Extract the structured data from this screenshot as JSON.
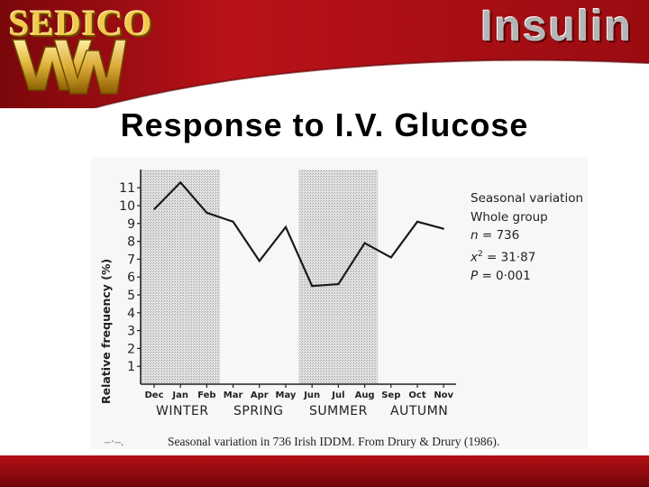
{
  "header": {
    "logo_text": "SEDICO",
    "brand_text": "Insulin",
    "colors": {
      "banner": "#a30d12",
      "banner_dark": "#6e0508",
      "logo_gold": "#e0b33a"
    }
  },
  "slide": {
    "title": "Response to I.V. Glucose",
    "caption_lead": "–·–.",
    "caption": "Seasonal variation in 736 Irish IDDM. From Drury & Drury (1986)."
  },
  "legend": {
    "line1": "Seasonal variation",
    "line2": "Whole group",
    "n_label": "n",
    "n_value": "= 736",
    "chi_label": "x",
    "chi_value": "= 31·87",
    "p_label": "P",
    "p_value": "= 0·001"
  },
  "seasons": [
    "WINTER",
    "SPRING",
    "SUMMER",
    "AUTUMN"
  ],
  "chart_data": {
    "type": "line",
    "categories": [
      "Dec",
      "Jan",
      "Feb",
      "Mar",
      "Apr",
      "May",
      "Jun",
      "Jul",
      "Aug",
      "Sep",
      "Oct",
      "Nov"
    ],
    "values": [
      9.8,
      11.3,
      9.6,
      9.1,
      6.9,
      8.8,
      5.5,
      5.6,
      7.9,
      7.1,
      9.1,
      8.7
    ],
    "ylabel": "Relative frequency (%)",
    "yticks": [
      1,
      2,
      3,
      4,
      5,
      6,
      7,
      8,
      9,
      10,
      11
    ],
    "ylim": [
      0,
      12
    ],
    "shaded_periods": [
      {
        "season": "WINTER",
        "from": "Dec",
        "to": "Feb"
      },
      {
        "season": "SUMMER",
        "from": "Jun",
        "to": "Aug"
      }
    ],
    "grid": false
  }
}
